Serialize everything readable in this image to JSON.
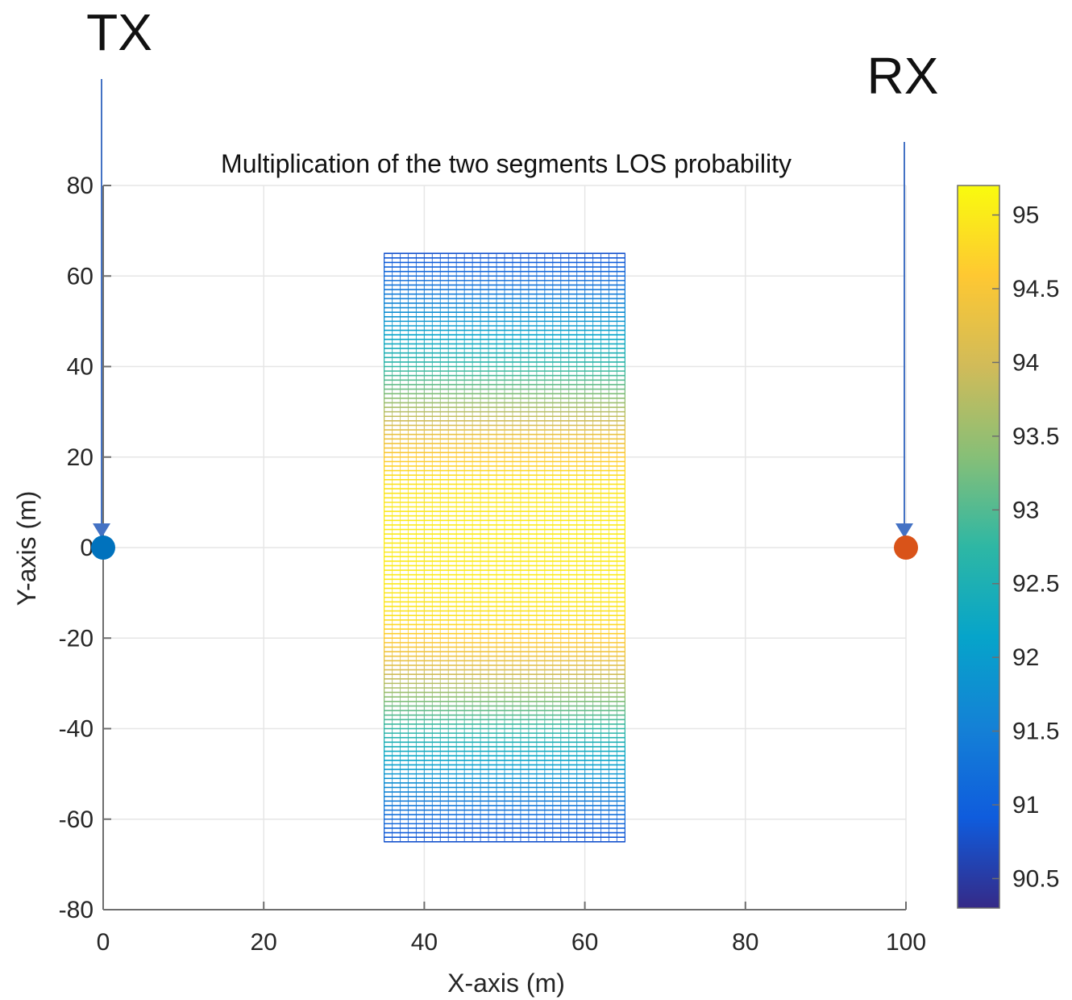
{
  "chart_data": {
    "type": "heatmap",
    "title": "Multiplication of the two segments LOS probability",
    "xlabel": "X-axis (m)",
    "ylabel": "Y-axis (m)",
    "xlim": [
      0,
      100
    ],
    "ylim": [
      -80,
      80
    ],
    "xticks": [
      0,
      20,
      40,
      60,
      80,
      100
    ],
    "yticks": [
      -80,
      -60,
      -40,
      -20,
      0,
      20,
      40,
      60,
      80
    ],
    "grid": true,
    "region": {
      "x_range": [
        35,
        65
      ],
      "y_range": [
        -65,
        65
      ]
    },
    "profile": {
      "y": [
        -65,
        -55,
        -45,
        -35,
        -25,
        -15,
        -5,
        0,
        5,
        15,
        25,
        35,
        45,
        55,
        65
      ],
      "value": [
        90.8,
        91.5,
        92.3,
        93.2,
        94.3,
        94.9,
        95.0,
        95.0,
        95.0,
        94.9,
        94.3,
        93.2,
        92.3,
        91.5,
        90.8
      ]
    },
    "colorbar": {
      "range": [
        90.3,
        95.2
      ],
      "ticks": [
        "90.5",
        "91",
        "91.5",
        "92",
        "92.5",
        "93",
        "93.5",
        "94",
        "94.5",
        "95"
      ]
    },
    "markers": [
      {
        "name": "TX",
        "x": 0,
        "y": 0,
        "color": "#0072BD"
      },
      {
        "name": "RX",
        "x": 100,
        "y": 0,
        "color": "#D95319"
      }
    ],
    "annotations": [
      {
        "label": "TX",
        "arrow_to": [
          0,
          0
        ]
      },
      {
        "label": "RX",
        "arrow_to": [
          100,
          0
        ]
      }
    ]
  },
  "colors": {
    "arrow": "#4472C4",
    "grid": "#e6e6e6",
    "axis": "#6e6e6e"
  }
}
